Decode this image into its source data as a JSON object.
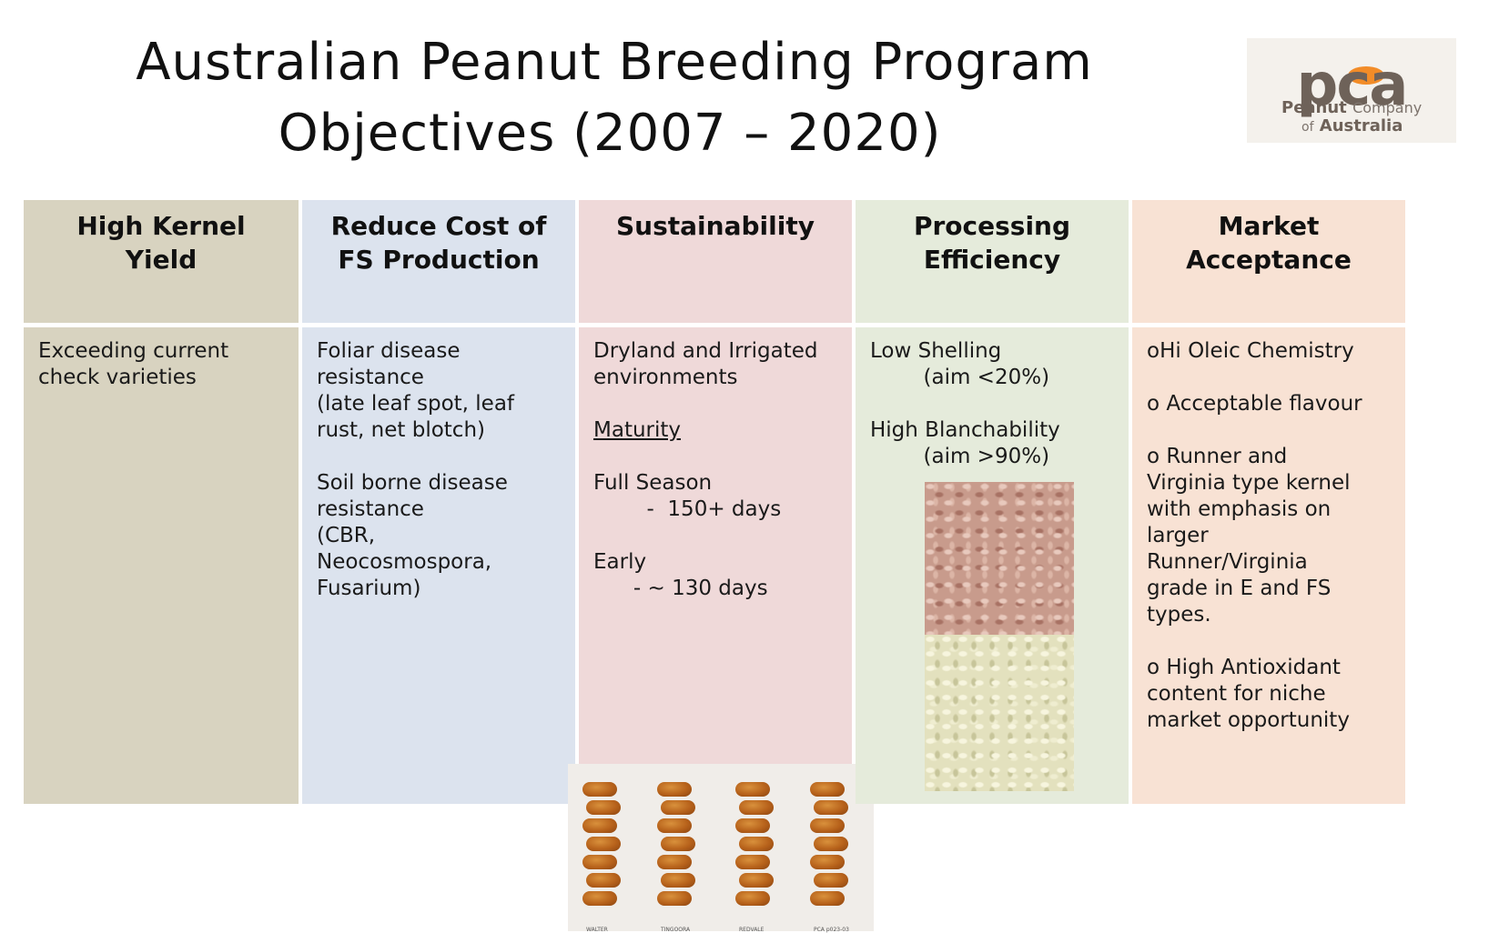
{
  "title": {
    "line1": "Australian Peanut Breeding Program",
    "line2": "Objectives (2007 – 2020)"
  },
  "logo": {
    "brand": "pca",
    "line1_bold": "Peanut",
    "line1_light": "Company",
    "line2_light": "of",
    "line2_bold": "Australia"
  },
  "columns": [
    {
      "header": "High Kernel\nYield",
      "body": [
        "Exceeding current\ncheck varieties"
      ]
    },
    {
      "header": "Reduce Cost of\nFS Production",
      "body": [
        "Foliar disease\nresistance\n(late leaf spot, leaf\nrust, net blotch)",
        "Soil borne disease\nresistance\n(CBR,\nNeocosmospora,\nFusarium)"
      ]
    },
    {
      "header": "Sustainability",
      "body": {
        "p1": "Dryland and Irrigated\nenvironments",
        "maturity": "Maturity",
        "full_season": "Full Season",
        "full_season_days": "        -  150+ days",
        "early": "Early",
        "early_days": "      - ~ 130 days"
      },
      "photo_labels": [
        "WALTER",
        "TINGOORA",
        "REDVALE",
        "PCA p023-03"
      ]
    },
    {
      "header": "Processing\nEfficiency",
      "body": {
        "shelling": "Low Shelling",
        "shelling_aim": "        (aim <20%)",
        "blanch": "High Blanchability",
        "blanch_aim": "        (aim >90%)"
      }
    },
    {
      "header": "Market\nAcceptance",
      "body": [
        "oHi Oleic Chemistry",
        "o Acceptable flavour",
        "o Runner and\nVirginia type kernel\nwith emphasis on\nlarger\nRunner/Virginia\ngrade in E and FS\ntypes.",
        "o High Antioxidant\ncontent for niche\nmarket opportunity"
      ]
    }
  ]
}
